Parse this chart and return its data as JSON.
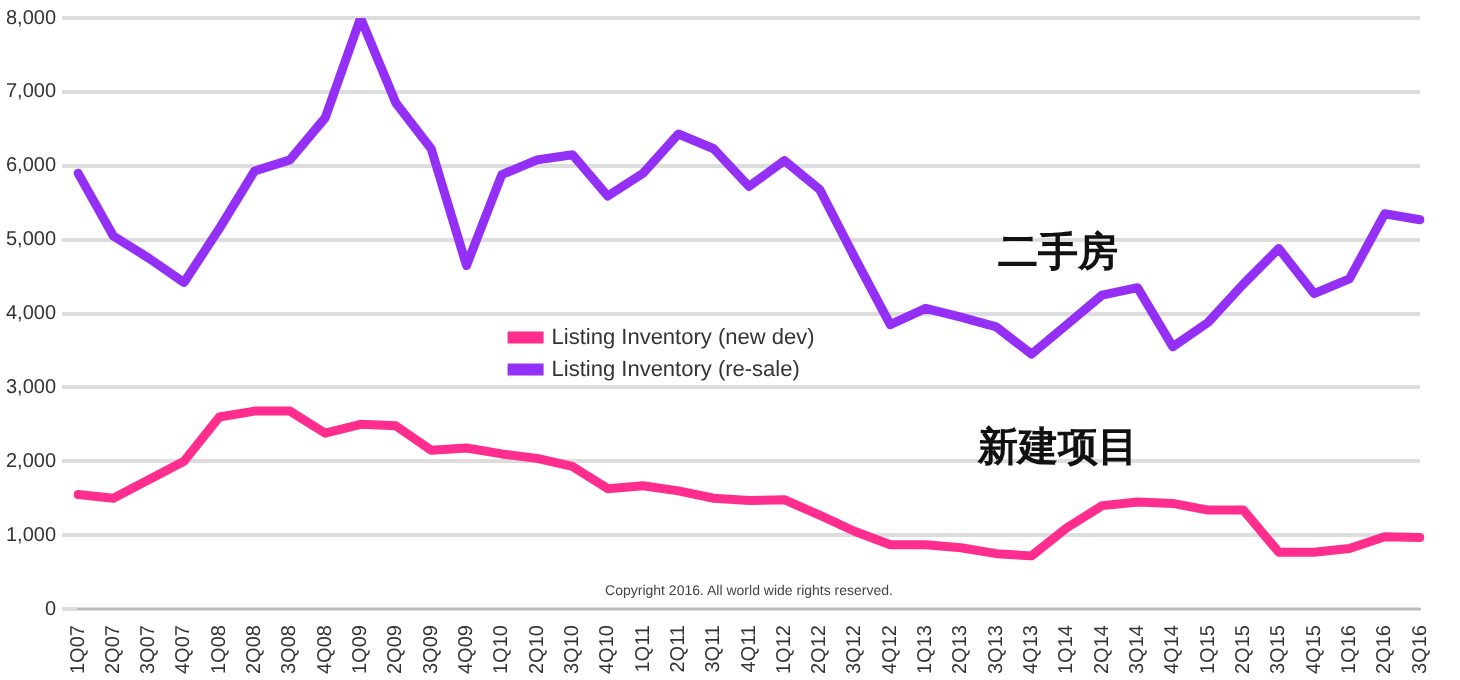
{
  "chart_data": {
    "type": "line",
    "categories": [
      "1Q07",
      "2Q07",
      "3Q07",
      "4Q07",
      "1Q08",
      "2Q08",
      "3Q08",
      "4Q08",
      "1Q09",
      "2Q09",
      "3Q09",
      "4Q09",
      "1Q10",
      "2Q10",
      "3Q10",
      "4Q10",
      "1Q11",
      "2Q11",
      "3Q11",
      "4Q11",
      "1Q12",
      "2Q12",
      "3Q12",
      "4Q12",
      "1Q13",
      "2Q13",
      "3Q13",
      "4Q13",
      "1Q14",
      "2Q14",
      "3Q14",
      "4Q14",
      "1Q15",
      "2Q15",
      "3Q15",
      "4Q15",
      "1Q16",
      "2Q16",
      "3Q16"
    ],
    "series": [
      {
        "name": "Listing Inventory (new dev)",
        "color": "#ff2d8e",
        "values": [
          1550,
          1500,
          1750,
          2000,
          2600,
          2680,
          2680,
          2380,
          2500,
          2480,
          2150,
          2180,
          2100,
          2040,
          1930,
          1630,
          1670,
          1600,
          1500,
          1470,
          1480,
          1270,
          1050,
          870,
          870,
          830,
          750,
          720,
          1100,
          1400,
          1450,
          1430,
          1340,
          1340,
          770,
          770,
          820,
          980,
          970
        ]
      },
      {
        "name": "Listing Inventory (re-sale)",
        "color": "#9430f5",
        "values": [
          5900,
          5050,
          4750,
          4420,
          5150,
          5930,
          6080,
          6650,
          8000,
          6850,
          6230,
          4650,
          5880,
          6080,
          6150,
          5590,
          5900,
          6430,
          6230,
          5720,
          6070,
          5680,
          4750,
          3850,
          4070,
          3950,
          3820,
          3450,
          3850,
          4250,
          4350,
          3550,
          3880,
          4400,
          4880,
          4270,
          4470,
          5350,
          5270
        ]
      }
    ],
    "ylim": [
      0,
      8000
    ],
    "yticks": [
      {
        "value": 0,
        "label": "0"
      },
      {
        "value": 1000,
        "label": "1,000"
      },
      {
        "value": 2000,
        "label": "2,000"
      },
      {
        "value": 3000,
        "label": "3,000"
      },
      {
        "value": 4000,
        "label": "4,000"
      },
      {
        "value": 5000,
        "label": "5,000"
      },
      {
        "value": 6000,
        "label": "6,000"
      },
      {
        "value": 7000,
        "label": "7,000"
      },
      {
        "value": 8000,
        "label": "8,000"
      }
    ],
    "grid": "y",
    "legend": "center",
    "marker": "none",
    "line_style": "solid",
    "annotations": [
      "二手房",
      "新建项目",
      "Copyright 2016. All world wide rights reserved."
    ]
  }
}
